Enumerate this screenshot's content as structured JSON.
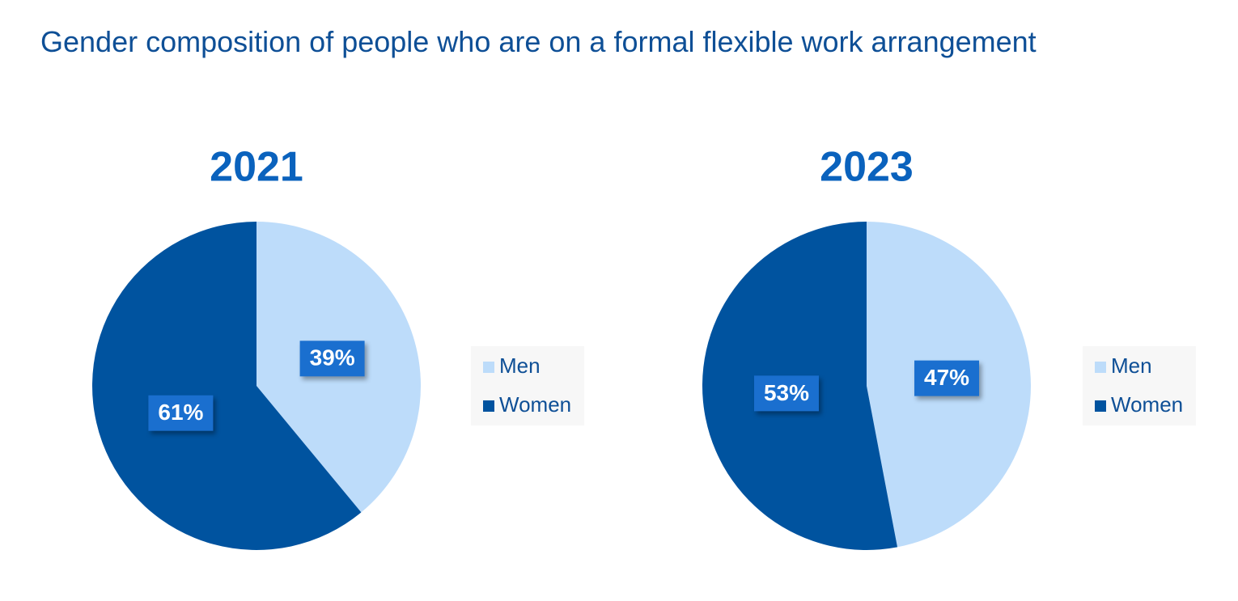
{
  "title": "Gender composition of people who are on a formal flexible work arrangement",
  "chart_data": [
    {
      "type": "pie",
      "title": "2021",
      "categories": [
        "Men",
        "Women"
      ],
      "values": [
        39,
        61
      ],
      "value_labels": [
        "39%",
        "61%"
      ],
      "colors": [
        "#bddcfa",
        "#00539f"
      ]
    },
    {
      "type": "pie",
      "title": "2023",
      "categories": [
        "Men",
        "Women"
      ],
      "values": [
        47,
        53
      ],
      "value_labels": [
        "47%",
        "53%"
      ],
      "colors": [
        "#bddcfa",
        "#00539f"
      ]
    }
  ]
}
